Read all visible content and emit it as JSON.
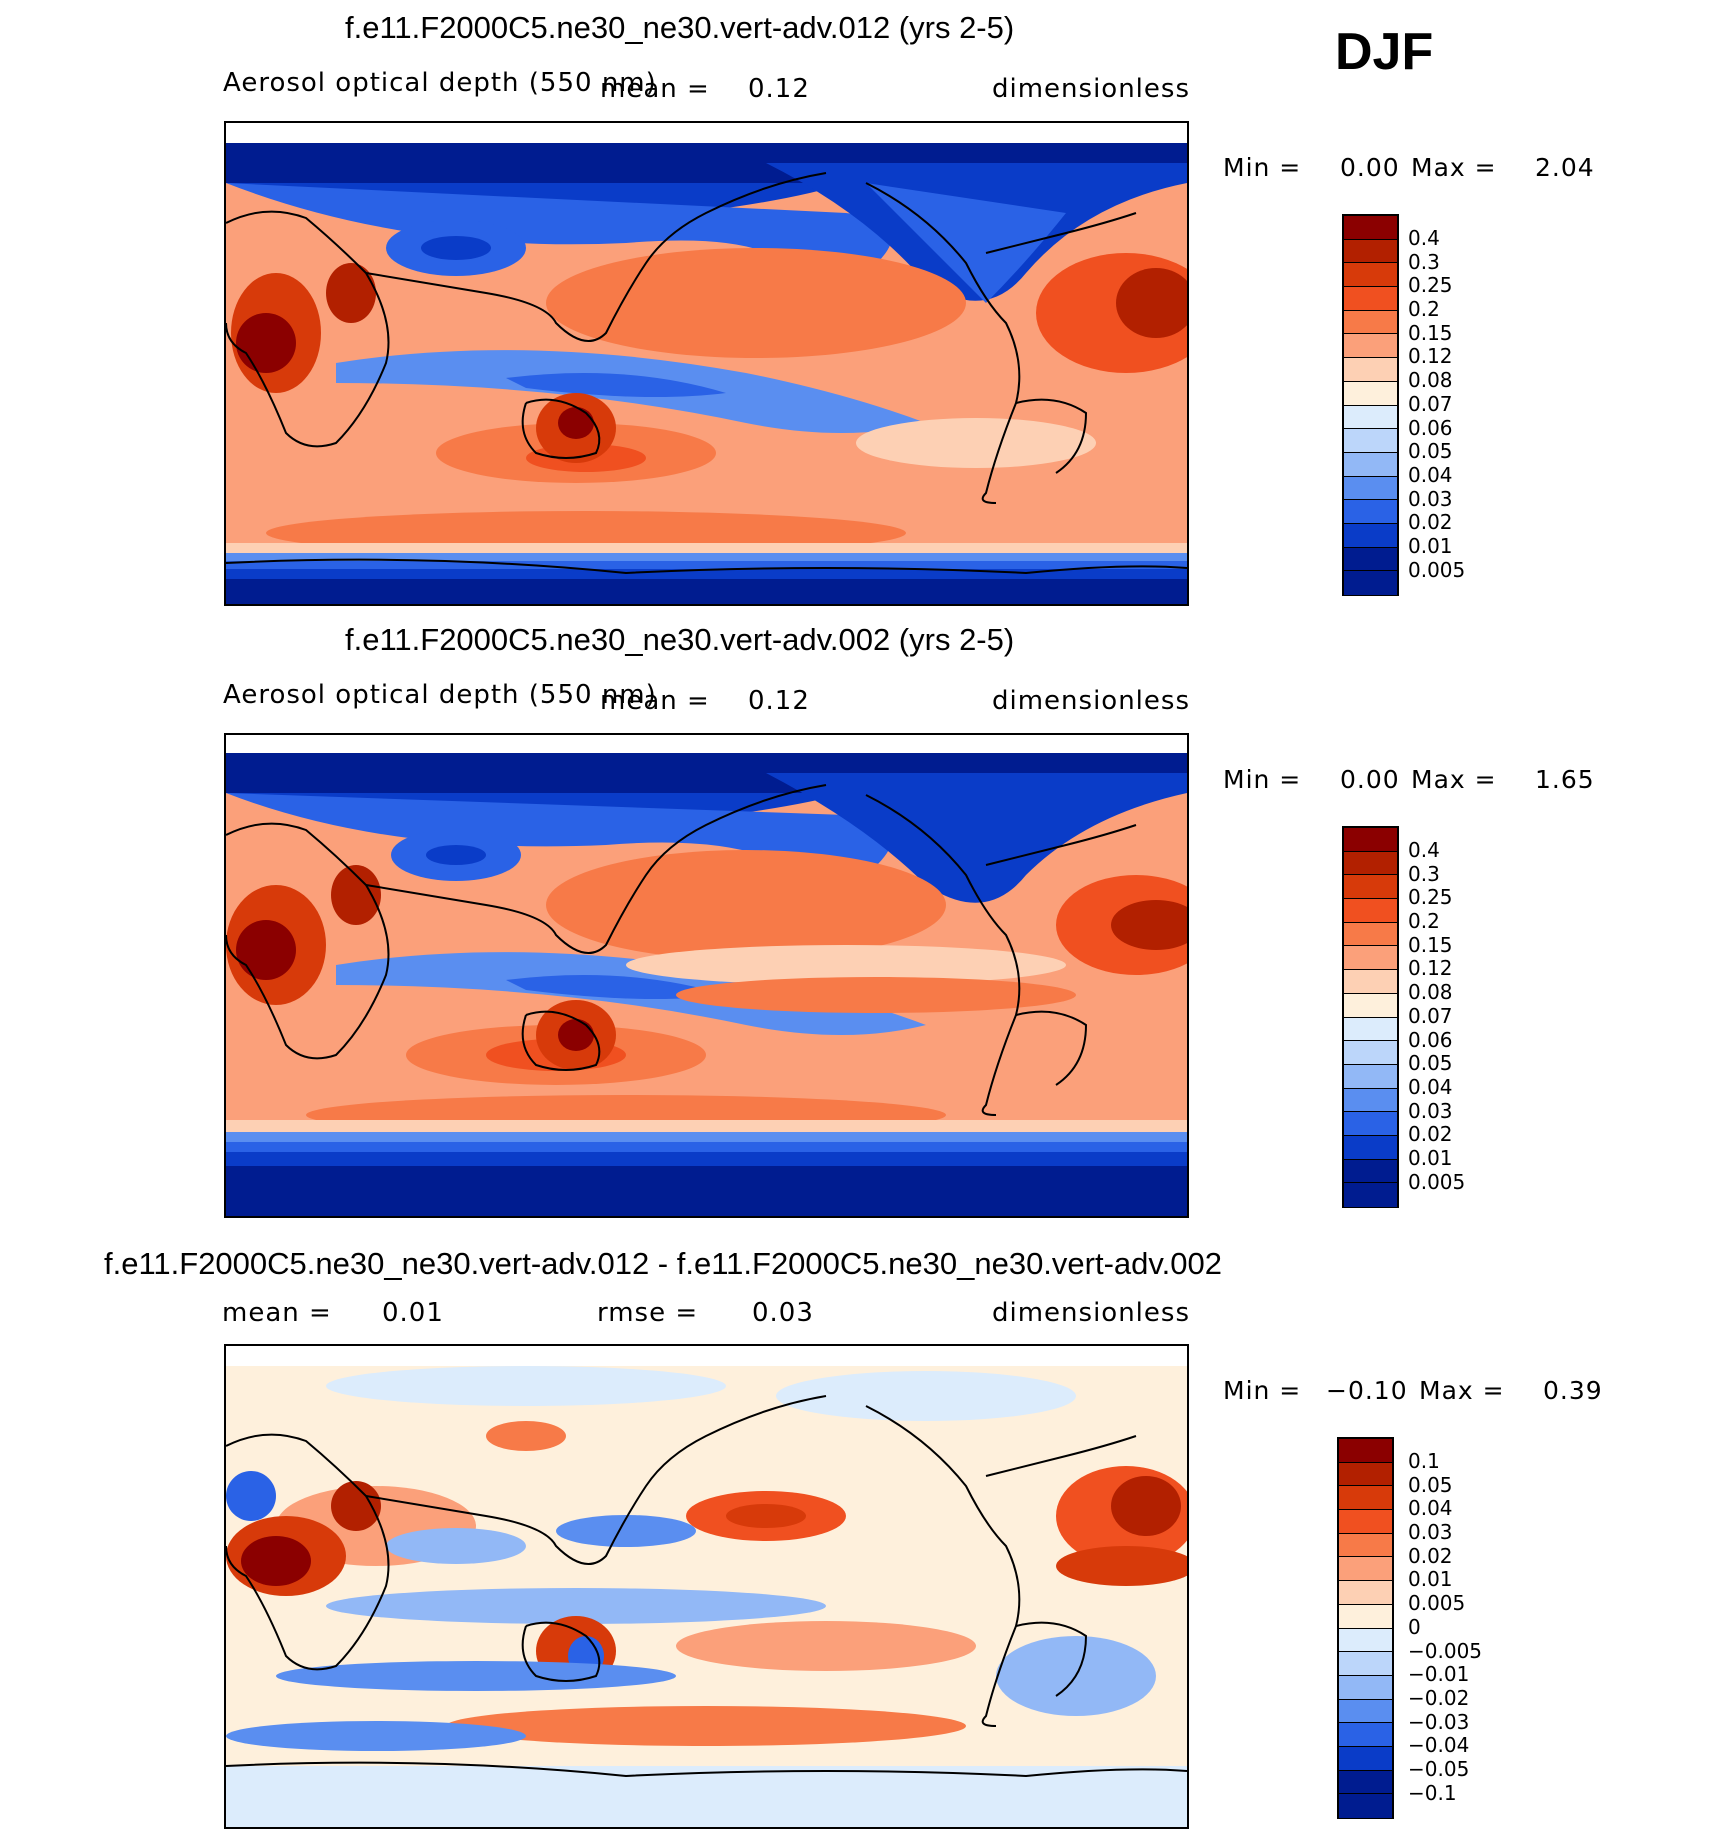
{
  "season": "DJF",
  "panels": [
    {
      "title": "f.e11.F2000C5.ne30_ne30.vert-adv.012 (yrs 2-5)",
      "variable": "Aerosol optical depth (550 nm)",
      "mean_label": "mean =",
      "mean_value": "0.12",
      "units": "dimensionless",
      "min_label": "Min =",
      "min_value": "0.00",
      "max_label": "Max =",
      "max_value": "2.04",
      "colorbar_labels": [
        "0.4",
        "0.3",
        "0.25",
        "0.2",
        "0.15",
        "0.12",
        "0.08",
        "0.07",
        "0.06",
        "0.05",
        "0.04",
        "0.03",
        "0.02",
        "0.01",
        "0.005"
      ],
      "colorbar_colors": [
        "#8b0000",
        "#b22000",
        "#d73a0a",
        "#f05020",
        "#f77a48",
        "#fba07a",
        "#fdd0b4",
        "#fef0dc",
        "#dcecfc",
        "#bcd6fa",
        "#92b8f6",
        "#5a8ef0",
        "#2a62e6",
        "#0a3cc8",
        "#001c90"
      ]
    },
    {
      "title": "f.e11.F2000C5.ne30_ne30.vert-adv.002 (yrs 2-5)",
      "variable": "Aerosol optical depth (550 nm)",
      "mean_label": "mean =",
      "mean_value": "0.12",
      "units": "dimensionless",
      "min_label": "Min =",
      "min_value": "0.00",
      "max_label": "Max =",
      "max_value": "1.65",
      "colorbar_labels": [
        "0.4",
        "0.3",
        "0.25",
        "0.2",
        "0.15",
        "0.12",
        "0.08",
        "0.07",
        "0.06",
        "0.05",
        "0.04",
        "0.03",
        "0.02",
        "0.01",
        "0.005"
      ],
      "colorbar_colors": [
        "#8b0000",
        "#b22000",
        "#d73a0a",
        "#f05020",
        "#f77a48",
        "#fba07a",
        "#fdd0b4",
        "#fef0dc",
        "#dcecfc",
        "#bcd6fa",
        "#92b8f6",
        "#5a8ef0",
        "#2a62e6",
        "#0a3cc8",
        "#001c90"
      ]
    },
    {
      "title": "f.e11.F2000C5.ne30_ne30.vert-adv.012 - f.e11.F2000C5.ne30_ne30.vert-adv.002",
      "mean_label": "mean =",
      "mean_value": "0.01",
      "rmse_label": "rmse =",
      "rmse_value": "0.03",
      "units": "dimensionless",
      "min_label": "Min =",
      "min_value": "−0.10",
      "max_label": "Max =",
      "max_value": "0.39",
      "colorbar_labels": [
        "0.1",
        "0.05",
        "0.04",
        "0.03",
        "0.02",
        "0.01",
        "0.005",
        "0",
        "−0.005",
        "−0.01",
        "−0.02",
        "−0.03",
        "−0.04",
        "−0.05",
        "−0.1"
      ],
      "colorbar_colors": [
        "#8b0000",
        "#b22000",
        "#d73a0a",
        "#f05020",
        "#f77a48",
        "#fba07a",
        "#fdd0b4",
        "#fef0dc",
        "#dcecfc",
        "#bcd6fa",
        "#92b8f6",
        "#5a8ef0",
        "#2a62e6",
        "#0a3cc8",
        "#001c90"
      ]
    }
  ]
}
